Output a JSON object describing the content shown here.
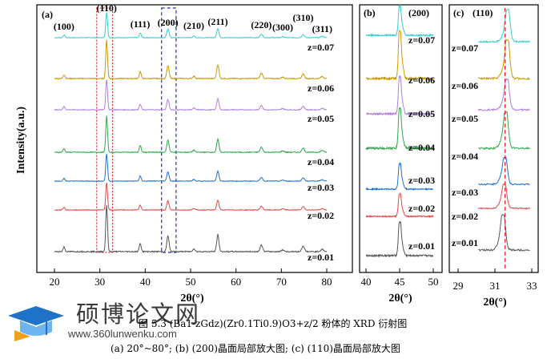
{
  "chart_data": [
    {
      "panel_tag": "(a)",
      "type": "line",
      "xlabel": "2θ(°)",
      "ylabel": "Intensity(a.u.)",
      "xlim": [
        20,
        80
      ],
      "xticks": [
        "20",
        "30",
        "40",
        "50",
        "60",
        "70",
        "80"
      ],
      "peak_labels": [
        {
          "label": "(100)",
          "x": 22.1
        },
        {
          "label": "(110)",
          "x": 31.5
        },
        {
          "label": "(111)",
          "x": 38.9
        },
        {
          "label": "(200)",
          "x": 45.0
        },
        {
          "label": "(210)",
          "x": 50.7
        },
        {
          "label": "(211)",
          "x": 56.0
        },
        {
          "label": "(220)",
          "x": 65.6
        },
        {
          "label": "(300)",
          "x": 70.3
        },
        {
          "label": "(310)",
          "x": 74.8
        },
        {
          "label": "(311)",
          "x": 79.0
        }
      ],
      "peaks": [
        {
          "x": 22.1,
          "h": 0.1,
          "w": 0.3
        },
        {
          "x": 31.5,
          "h": 1.0,
          "w": 0.28
        },
        {
          "x": 38.9,
          "h": 0.18,
          "w": 0.3
        },
        {
          "x": 45.0,
          "h": 0.34,
          "w": 0.35
        },
        {
          "x": 50.7,
          "h": 0.06,
          "w": 0.35
        },
        {
          "x": 56.0,
          "h": 0.36,
          "w": 0.35
        },
        {
          "x": 65.6,
          "h": 0.14,
          "w": 0.4
        },
        {
          "x": 70.3,
          "h": 0.04,
          "w": 0.4
        },
        {
          "x": 74.8,
          "h": 0.12,
          "w": 0.4
        },
        {
          "x": 79.0,
          "h": 0.05,
          "w": 0.45
        }
      ],
      "series": [
        {
          "name": "z=0.07",
          "color": "#33cccc"
        },
        {
          "name": "z=0.06",
          "color": "#cc9900"
        },
        {
          "name": "z=0.05",
          "color": "#b07fd8"
        },
        {
          "name": "z=0.04",
          "color": "#33a64c"
        },
        {
          "name": "z=0.03",
          "color": "#1f6fd0"
        },
        {
          "name": "z=0.02",
          "color": "#e04848"
        },
        {
          "name": "z=0.01",
          "color": "#555555"
        }
      ],
      "highlight_boxes": [
        {
          "xlim": [
            29.3,
            32.8
          ],
          "color": "#e03030",
          "style": "dotted"
        },
        {
          "xlim": [
            43.6,
            46.8
          ],
          "color": "#1f2fd0",
          "style": "dashed"
        }
      ]
    },
    {
      "panel_tag": "(b)",
      "peak_label": "(200)",
      "type": "line",
      "xlabel": "2θ(°)",
      "xlim": [
        40,
        50
      ],
      "xticks": [
        "40",
        "45",
        "50"
      ],
      "peak_center": 45.0,
      "series_labels": [
        "z=0.07",
        "z=0.06",
        "z=0.05",
        "z=0.04",
        "z=0.03",
        "z=0.02",
        "z=0.01"
      ]
    },
    {
      "panel_tag": "(c)",
      "peak_label": "(110)",
      "type": "line",
      "xlabel": "2θ(°)",
      "xlim": [
        29,
        33
      ],
      "xticks": [
        "29",
        "31",
        "33"
      ],
      "reference_line_x": 31.55,
      "peak_centers": [
        31.7,
        31.68,
        31.66,
        31.6,
        31.55,
        31.52,
        31.45
      ],
      "series_labels": [
        "z=0.07",
        "z=0.06",
        "z=0.05",
        "z=0.04",
        "z=0.03",
        "z=0.02",
        "z=0.01"
      ]
    }
  ],
  "caption": {
    "line1": "图 5.3 (Ba1-zGdz)(Zr0.1Ti0.9)O3+z/2 粉体的 XRD 衍射图",
    "line2": "(a) 20°~80°; (b) (200)晶面局部放大图; (c) (110)晶面局部放大图"
  },
  "watermark": {
    "title": "硕博论文网",
    "url": "www.360lunwenku.com"
  }
}
